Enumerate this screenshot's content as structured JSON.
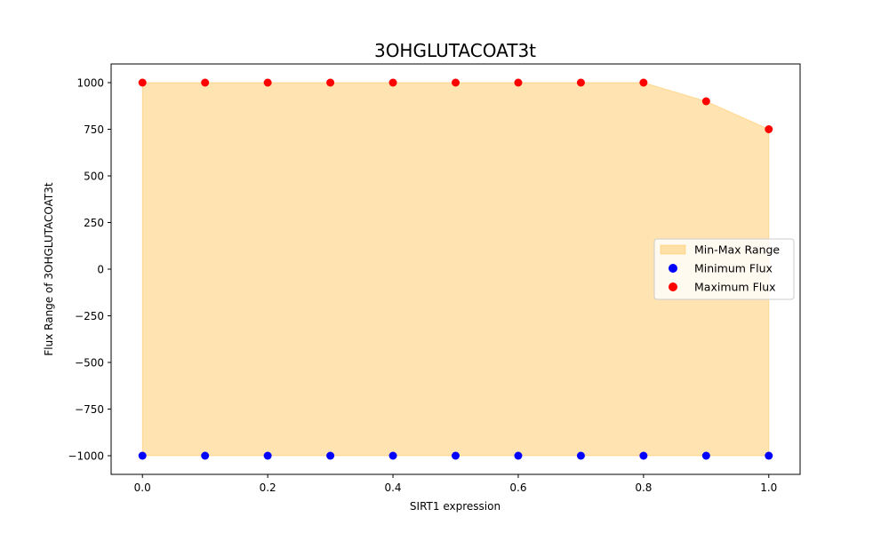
{
  "chart_data": {
    "type": "scatter",
    "title": "3OHGLUTACOAT3t",
    "xlabel": "SIRT1 expression",
    "ylabel": "Flux Range of 3OHGLUTACOAT3t",
    "x": [
      0.0,
      0.1,
      0.2,
      0.3,
      0.4,
      0.5,
      0.6,
      0.7,
      0.8,
      0.9,
      1.0
    ],
    "xlim": [
      -0.05,
      1.05
    ],
    "ylim": [
      -1100,
      1100
    ],
    "xticks": [
      0.0,
      0.2,
      0.4,
      0.6,
      0.8,
      1.0
    ],
    "xtick_labels": [
      "0.0",
      "0.2",
      "0.4",
      "0.6",
      "0.8",
      "1.0"
    ],
    "yticks": [
      1000,
      750,
      500,
      250,
      0,
      -250,
      -500,
      -750,
      -1000
    ],
    "ytick_labels": [
      "1000",
      "750",
      "500",
      "250",
      "0",
      "−250",
      "−500",
      "−750",
      "−1000"
    ],
    "series": [
      {
        "name": "Minimum Flux",
        "color": "#0000ff",
        "values": [
          -1000,
          -1000,
          -1000,
          -1000,
          -1000,
          -1000,
          -1000,
          -1000,
          -1000,
          -1000,
          -1000
        ]
      },
      {
        "name": "Maximum Flux",
        "color": "#ff0000",
        "values": [
          1000,
          1000,
          1000,
          1000,
          1000,
          1000,
          1000,
          1000,
          1000,
          900,
          750
        ]
      }
    ],
    "fill": {
      "name": "Min-Max Range",
      "color": "#ffa500",
      "opacity": 0.3
    },
    "legend_position": "center-right",
    "grid": false
  }
}
